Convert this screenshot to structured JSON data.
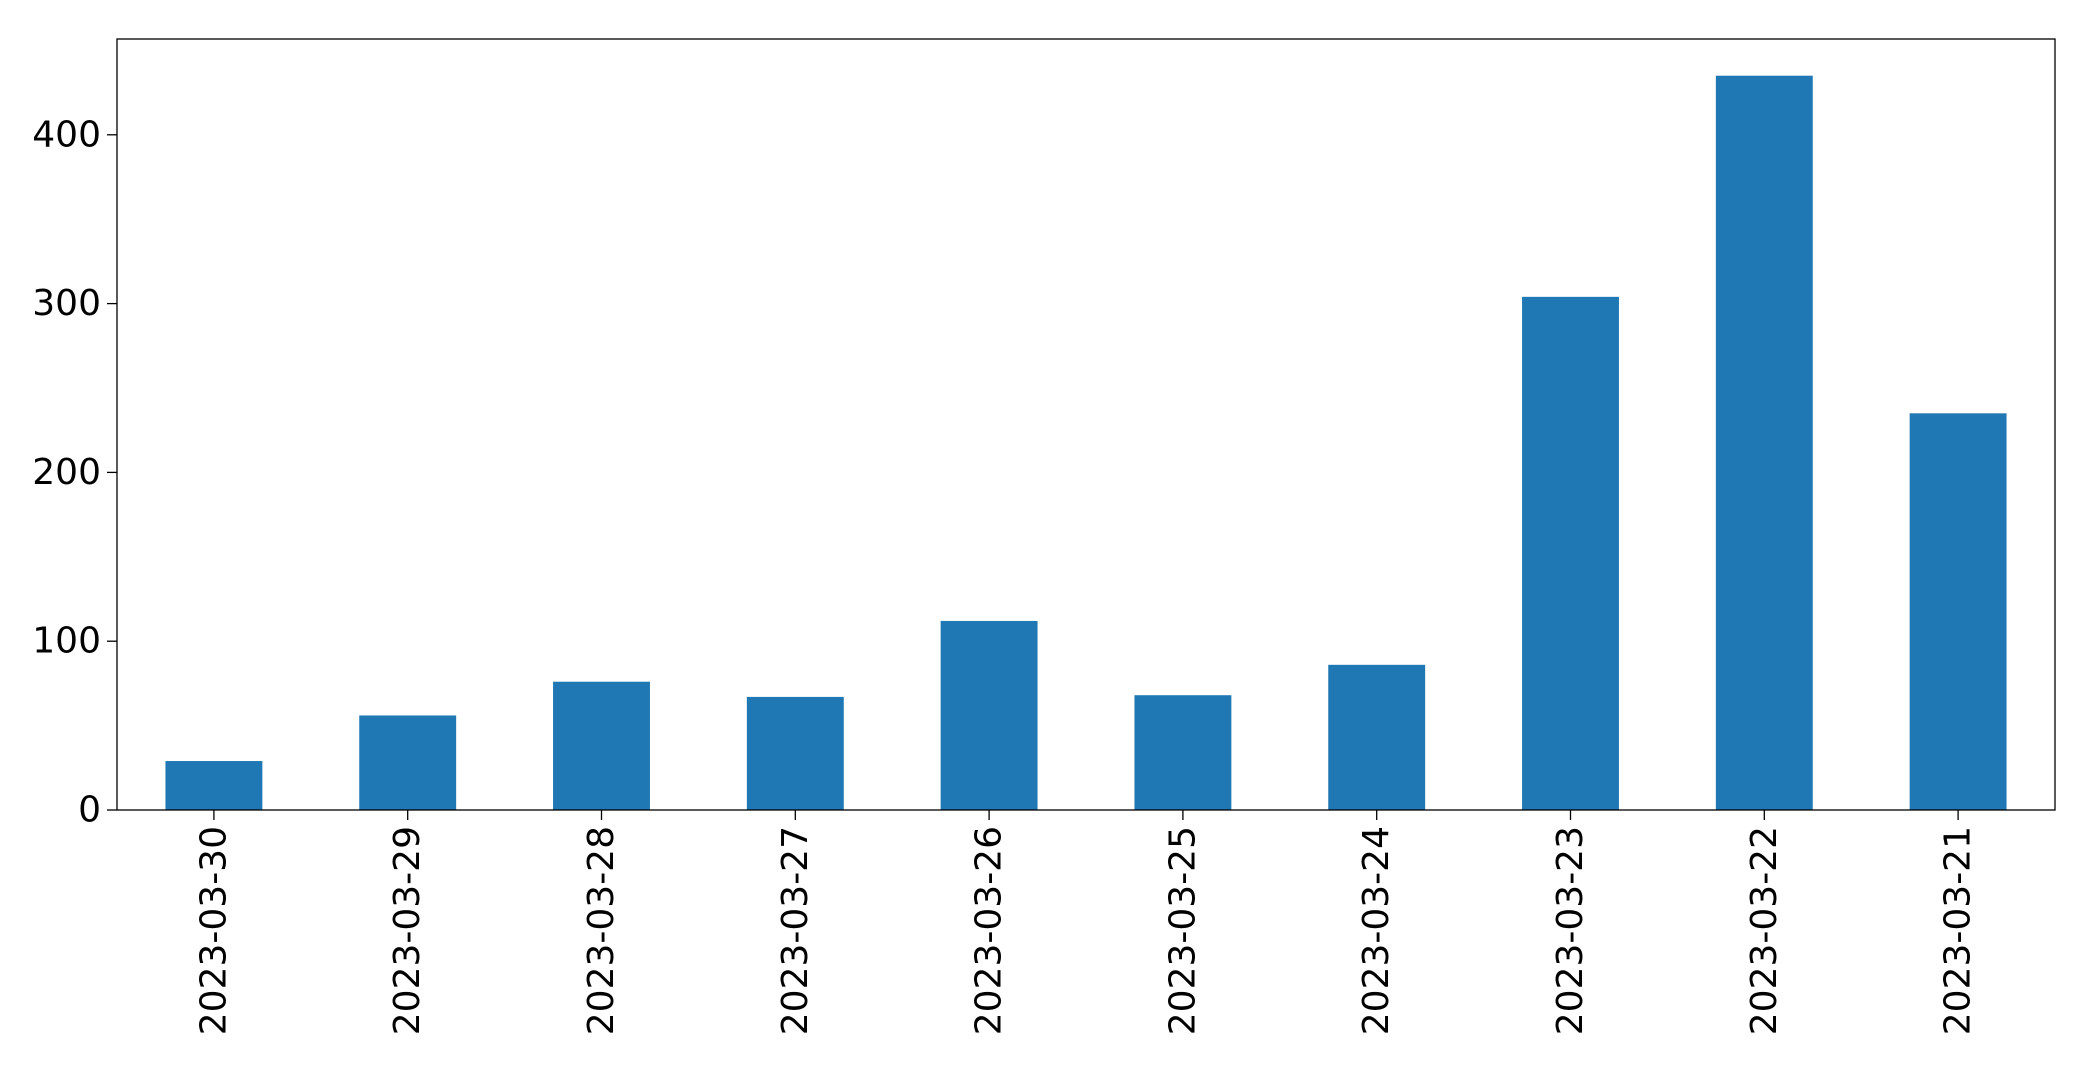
{
  "chart_data": {
    "type": "bar",
    "title": "",
    "xlabel": "",
    "ylabel": "",
    "categories": [
      "2023-03-30",
      "2023-03-29",
      "2023-03-28",
      "2023-03-27",
      "2023-03-26",
      "2023-03-25",
      "2023-03-24",
      "2023-03-23",
      "2023-03-22",
      "2023-03-21"
    ],
    "values": [
      29,
      56,
      76,
      67,
      112,
      68,
      86,
      304,
      435,
      235
    ],
    "ylim": [
      0,
      456.75
    ],
    "yticks": [
      0,
      100,
      200,
      300,
      400
    ],
    "grid": false,
    "legend": false,
    "bar_color": "#1f77b4"
  }
}
